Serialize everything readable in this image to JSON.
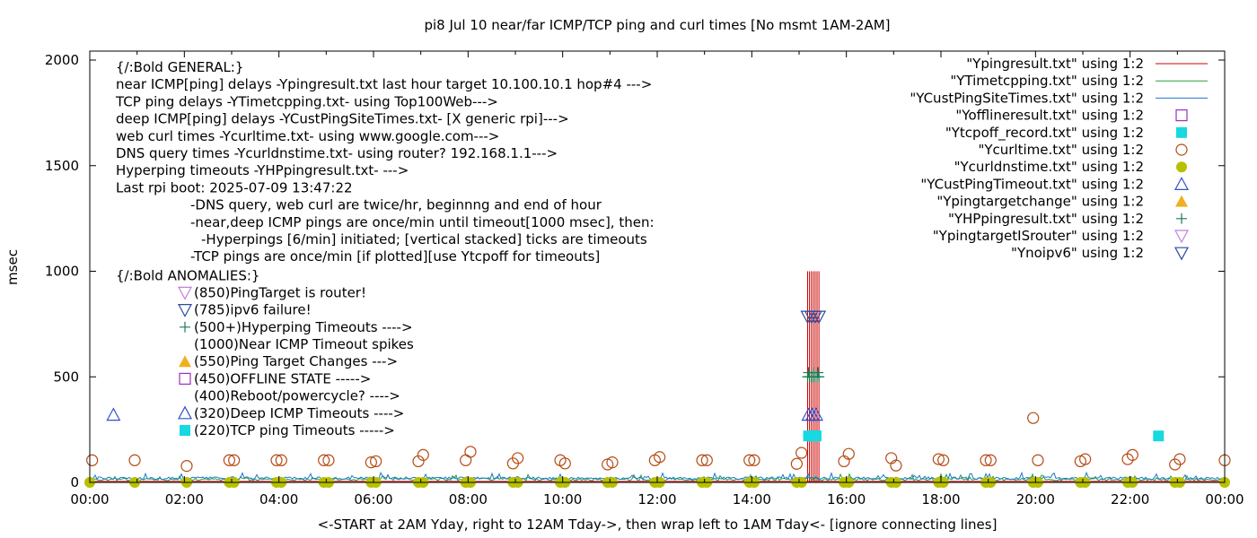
{
  "chart_data": {
    "type": "scatter",
    "title": "pi8 Jul 10  near/far ICMP/TCP ping and curl times [No msmt 1AM-2AM]",
    "xlabel": "<-START at 2AM Yday, right to 12AM Tday->, then wrap left to 1AM Tday<- [ignore connecting lines]",
    "ylabel": "msec",
    "xlim": [
      0,
      24
    ],
    "ylim": [
      0,
      2000
    ],
    "x_unit": "hours",
    "grid": false,
    "legend_position": "top-right",
    "x_ticks": [
      {
        "v": 0,
        "label": "00:00"
      },
      {
        "v": 2,
        "label": "02:00"
      },
      {
        "v": 4,
        "label": "04:00"
      },
      {
        "v": 6,
        "label": "06:00"
      },
      {
        "v": 8,
        "label": "08:00"
      },
      {
        "v": 10,
        "label": "10:00"
      },
      {
        "v": 12,
        "label": "12:00"
      },
      {
        "v": 14,
        "label": "14:00"
      },
      {
        "v": 16,
        "label": "16:00"
      },
      {
        "v": 18,
        "label": "18:00"
      },
      {
        "v": 20,
        "label": "20:00"
      },
      {
        "v": 22,
        "label": "22:00"
      },
      {
        "v": 24,
        "label": "00:00"
      }
    ],
    "y_ticks": [
      {
        "v": 0,
        "label": "0"
      },
      {
        "v": 500,
        "label": "500"
      },
      {
        "v": 1000,
        "label": "1000"
      },
      {
        "v": 1500,
        "label": "1500"
      },
      {
        "v": 2000,
        "label": "2000"
      }
    ],
    "series": [
      {
        "name": "\"Ypingresult.txt\" using 1:2",
        "color": "#cc0000",
        "marker": "line",
        "x": [
          0,
          1,
          2,
          4,
          6,
          8,
          10,
          12,
          14,
          15,
          15.18,
          15.22,
          15.26,
          15.3,
          15.34,
          15.38,
          15.42,
          15.5,
          16,
          18,
          20,
          22,
          24
        ],
        "y": [
          6,
          7,
          6,
          7,
          6,
          7,
          6,
          7,
          6,
          7,
          1000,
          1000,
          1000,
          1000,
          1000,
          1000,
          1000,
          7,
          6,
          7,
          6,
          7,
          6
        ]
      },
      {
        "name": "\"YTimetcpping.txt\" using 1:2",
        "color": "#2a9d3a",
        "marker": "line-noisy",
        "x": [
          0,
          2,
          4,
          6,
          8,
          10,
          12,
          14,
          16,
          18,
          20,
          22,
          24
        ],
        "y": [
          14,
          14,
          14,
          14,
          14,
          14,
          14,
          14,
          14,
          14,
          14,
          14,
          14
        ]
      },
      {
        "name": "\"YCustPingSiteTimes.txt\" using 1:2",
        "color": "#1f77d0",
        "marker": "line-noisy",
        "x": [
          0,
          2,
          4,
          6,
          8,
          10,
          12,
          14,
          16,
          18,
          20,
          22,
          24
        ],
        "y": [
          20,
          20,
          20,
          20,
          20,
          20,
          20,
          20,
          20,
          20,
          20,
          20,
          20
        ]
      },
      {
        "name": "\"Yofflineresult.txt\" using 1:2",
        "color": "#9b30c0",
        "marker": "open-square",
        "x": [],
        "y": []
      },
      {
        "name": "\"Ytcpoff_record.txt\" using 1:2",
        "color": "#18d8e0",
        "marker": "filled-square",
        "x": [
          15.2,
          15.28,
          15.36,
          22.6
        ],
        "y": [
          220,
          220,
          220,
          220
        ]
      },
      {
        "name": "\"Ycurltime.txt\" using 1:2",
        "color": "#b44a14",
        "marker": "open-circle",
        "x": [
          0.05,
          0.95,
          2.05,
          2.95,
          3.05,
          3.95,
          4.05,
          4.95,
          5.05,
          5.95,
          6.05,
          6.95,
          7.05,
          7.95,
          8.05,
          8.95,
          9.05,
          9.95,
          10.05,
          10.95,
          11.05,
          11.95,
          12.05,
          12.95,
          13.05,
          13.95,
          14.05,
          14.95,
          15.05,
          15.95,
          16.05,
          16.95,
          17.05,
          17.95,
          18.05,
          18.95,
          19.05,
          19.95,
          20.05,
          20.95,
          21.05,
          21.95,
          22.05,
          22.95,
          23.05,
          24
        ],
        "y": [
          105,
          105,
          78,
          105,
          105,
          105,
          105,
          105,
          105,
          95,
          100,
          100,
          130,
          105,
          145,
          90,
          115,
          105,
          90,
          85,
          95,
          105,
          120,
          105,
          105,
          105,
          105,
          88,
          140,
          100,
          135,
          115,
          80,
          110,
          105,
          105,
          105,
          305,
          105,
          100,
          110,
          110,
          130,
          85,
          110,
          105
        ]
      },
      {
        "name": "\"Ycurldnstime.txt\" using 1:2",
        "color": "#b8c000",
        "marker": "filled-circle",
        "x": [
          0,
          0.95,
          2.05,
          2.95,
          3.05,
          3.95,
          4.05,
          4.95,
          5.05,
          5.95,
          6.05,
          6.95,
          7.05,
          7.95,
          8.05,
          8.95,
          9.05,
          9.95,
          10.05,
          10.95,
          11.05,
          11.95,
          12.05,
          12.95,
          13.05,
          13.95,
          14.05,
          14.95,
          15.05,
          15.95,
          16.05,
          16.95,
          17.05,
          17.95,
          18.05,
          18.95,
          19.05,
          19.95,
          20.05,
          20.95,
          21.05,
          21.95,
          22.05,
          22.95,
          23.05,
          24
        ],
        "y": [
          0,
          0,
          0,
          0,
          0,
          0,
          0,
          0,
          0,
          0,
          0,
          0,
          0,
          0,
          0,
          0,
          0,
          0,
          0,
          0,
          0,
          0,
          0,
          0,
          0,
          0,
          0,
          0,
          0,
          0,
          0,
          0,
          0,
          0,
          0,
          0,
          0,
          0,
          0,
          0,
          0,
          0,
          0,
          0,
          0,
          0
        ]
      },
      {
        "name": "\"YCustPingTimeout.txt\" using 1:2",
        "color": "#3050d0",
        "marker": "open-triangle-up",
        "x": [
          0.5,
          15.2,
          15.28,
          15.36
        ],
        "y": [
          320,
          320,
          320,
          320
        ]
      },
      {
        "name": "\"Ypingtargetchange\" using 1:2",
        "color": "#f0b020",
        "marker": "filled-triangle-up",
        "x": [],
        "y": []
      },
      {
        "name": "\"YHPpingresult.txt\" using 1:2",
        "color": "#1e7a50",
        "marker": "plus",
        "x": [
          15.18,
          15.22,
          15.26,
          15.3,
          15.34,
          15.38,
          15.42,
          15.2,
          15.3,
          15.4
        ],
        "y": [
          500,
          500,
          500,
          500,
          500,
          500,
          500,
          520,
          520,
          520
        ]
      },
      {
        "name": "\"YpingtargetISrouter\" using 1:2",
        "color": "#c080e0",
        "marker": "open-triangle-down",
        "x": [],
        "y": []
      },
      {
        "name": "\"Ynoipv6\" using 1:2",
        "color": "#2a4aa0",
        "marker": "open-triangle-down",
        "x": [
          15.18,
          15.26,
          15.34,
          15.42
        ],
        "y": [
          785,
          785,
          785,
          785
        ]
      }
    ],
    "annotations": {
      "general": [
        "{/:Bold GENERAL:}",
        "near ICMP[ping] delays -Ypingresult.txt last hour target 10.100.10.1 hop#4 --->",
        "TCP ping delays -YTimetcpping.txt- using Top100Web--->",
        "deep ICMP[ping] delays -YCustPingSiteTimes.txt- [X generic rpi]--->",
        "web curl times -Ycurltime.txt- using www.google.com--->",
        "DNS query times -Ycurldnstime.txt- using router? 192.168.1.1--->",
        "Hyperping timeouts -YHPpingresult.txt- --->",
        "Last rpi boot: 2025-07-09 13:47:22"
      ],
      "notes": [
        "-DNS query, web curl are twice/hr, beginnng and end of hour",
        "-near,deep ICMP pings are once/min until timeout[1000 msec], then:",
        "-Hyperpings [6/min] initiated; [vertical stacked] ticks are timeouts",
        "-TCP pings are once/min [if plotted][use Ytcpoff for timeouts]"
      ],
      "anomalies_title": "{/:Bold ANOMALIES:}",
      "anomalies": [
        {
          "text": "(850)PingTarget is router!",
          "marker": "open-triangle-down",
          "color": "#c080e0"
        },
        {
          "text": "(785)ipv6 failure!",
          "marker": "open-triangle-down",
          "color": "#2a4aa0"
        },
        {
          "text": "(500+)Hyperping Timeouts ---->",
          "marker": "plus",
          "color": "#1e7a50"
        },
        {
          "text": "(1000)Near ICMP Timeout spikes",
          "marker": "none",
          "color": "#000000"
        },
        {
          "text": "(550)Ping Target Changes --->",
          "marker": "filled-triangle-up",
          "color": "#f0b020"
        },
        {
          "text": "(450)OFFLINE STATE ----->",
          "marker": "open-square",
          "color": "#9b30c0"
        },
        {
          "text": "(400)Reboot/powercycle? ---->",
          "marker": "none",
          "color": "#000000"
        },
        {
          "text": "(320)Deep ICMP Timeouts ---->",
          "marker": "open-triangle-up",
          "color": "#3050d0"
        },
        {
          "text": "(220)TCP ping Timeouts ----->",
          "marker": "filled-square",
          "color": "#18d8e0"
        }
      ]
    }
  }
}
